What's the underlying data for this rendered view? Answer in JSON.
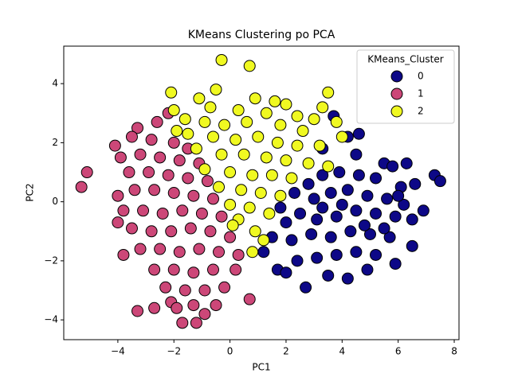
{
  "chart_data": {
    "type": "scatter",
    "title": "KMeans Clustering po PCA",
    "x_label": "PC1",
    "y_label": "PC2",
    "legend_title": "KMeans_Cluster",
    "legend_position": "upper right",
    "grid": false,
    "xlim": [
      -5.93,
      8.17
    ],
    "ylim": [
      -4.67,
      5.27
    ],
    "xticks": [
      {
        "value": -4,
        "label": "−4"
      },
      {
        "value": -2,
        "label": "−2"
      },
      0,
      2,
      4,
      6,
      8
    ],
    "yticks": [
      {
        "value": -4,
        "label": "−4"
      },
      {
        "value": -2,
        "label": "−2"
      },
      0,
      2,
      4
    ],
    "series": [
      {
        "name": "0",
        "color": "#0d0887",
        "x": [
          3.7,
          4.6,
          4.2,
          3.3,
          4.5,
          5.5,
          6.3,
          5.8,
          7.3,
          7.5,
          6.6,
          6.1,
          5.2,
          4.6,
          3.9,
          3.3,
          2.8,
          2.3,
          3.0,
          3.6,
          4.2,
          4.9,
          5.6,
          6.2,
          6.9,
          6.5,
          5.9,
          5.2,
          4.5,
          3.8,
          3.1,
          2.5,
          2.0,
          1.5,
          2.2,
          2.9,
          3.6,
          4.3,
          5.0,
          5.7,
          6.5,
          5.9,
          5.2,
          4.5,
          3.8,
          3.1,
          2.4,
          1.7,
          1.2,
          2.7,
          3.5,
          4.2,
          4.9,
          2.0,
          1.8,
          3.3,
          4.0,
          4.8,
          5.5,
          6.0
        ],
        "values": [
          2.9,
          2.3,
          2.2,
          1.8,
          1.6,
          1.3,
          1.3,
          1.2,
          0.9,
          0.7,
          0.6,
          0.5,
          0.8,
          0.9,
          1.0,
          0.9,
          0.6,
          0.3,
          0.1,
          0.3,
          0.4,
          0.2,
          0.1,
          -0.1,
          -0.3,
          -0.6,
          -0.5,
          -0.4,
          -0.3,
          -0.5,
          -0.6,
          -0.4,
          -0.7,
          -1.2,
          -1.3,
          -1.1,
          -1.2,
          -1.0,
          -1.1,
          -1.2,
          -1.5,
          -2.1,
          -1.8,
          -1.7,
          -1.8,
          -1.9,
          -2.0,
          -2.3,
          -1.7,
          -2.9,
          -2.5,
          -2.6,
          -2.3,
          -2.4,
          -0.2,
          -0.2,
          -0.1,
          -0.8,
          -0.9,
          0.2
        ]
      },
      {
        "name": "1",
        "color": "#cc4778",
        "x": [
          -5.3,
          -5.1,
          -4.0,
          -3.8,
          -3.3,
          -2.7,
          -2.1,
          -1.7,
          -1.2,
          -0.9,
          0.7,
          -2.2,
          -3.3,
          -4.1,
          -3.5,
          -2.8,
          -2.0,
          -1.5,
          -3.9,
          -3.2,
          -2.5,
          -1.8,
          -1.1,
          -3.6,
          -2.9,
          -2.2,
          -1.5,
          -0.8,
          -3.4,
          -2.7,
          -2.0,
          -1.3,
          -0.6,
          -3.8,
          -3.1,
          -2.4,
          -1.7,
          -1.0,
          -0.3,
          -3.5,
          -2.8,
          -2.1,
          -1.4,
          -0.7,
          0.0,
          -3.2,
          -2.5,
          -1.8,
          -1.1,
          -0.4,
          0.3,
          -2.7,
          -2.0,
          -1.3,
          -0.6,
          0.2,
          -2.3,
          -1.6,
          -0.9,
          -0.2,
          -1.9,
          -1.3,
          -0.5,
          -4.0,
          -2.6
        ],
        "values": [
          0.5,
          1.0,
          0.2,
          -1.8,
          -3.7,
          -3.6,
          -3.4,
          -4.1,
          -4.1,
          -3.8,
          -3.3,
          3.0,
          2.5,
          1.9,
          2.2,
          2.1,
          2.0,
          1.8,
          1.5,
          1.6,
          1.5,
          1.4,
          1.3,
          1.0,
          1.0,
          0.9,
          0.8,
          0.7,
          0.4,
          0.4,
          0.3,
          0.2,
          0.1,
          -0.3,
          -0.3,
          -0.4,
          -0.3,
          -0.4,
          -0.5,
          -0.9,
          -1.0,
          -1.0,
          -0.9,
          -1.0,
          -1.2,
          -1.6,
          -1.6,
          -1.7,
          -1.6,
          -1.7,
          -1.8,
          -2.3,
          -2.3,
          -2.4,
          -2.3,
          -2.3,
          -2.9,
          -3.0,
          -3.0,
          -2.9,
          -3.6,
          -3.5,
          -3.5,
          -0.7,
          2.7
        ]
      },
      {
        "name": "2",
        "color": "#f0f921",
        "x": [
          -0.3,
          0.7,
          -0.5,
          -2.0,
          -2.1,
          3.5,
          3.3,
          -1.1,
          0.9,
          2.0,
          1.6,
          -0.7,
          0.3,
          1.3,
          2.4,
          3.0,
          3.8,
          -1.6,
          -0.9,
          -0.2,
          0.6,
          1.8,
          2.6,
          -1.5,
          -0.6,
          0.2,
          1.0,
          1.7,
          2.4,
          3.2,
          -1.2,
          -0.3,
          0.5,
          1.3,
          2.0,
          2.8,
          3.5,
          -0.9,
          0.0,
          0.8,
          1.5,
          2.2,
          -0.4,
          0.4,
          1.1,
          1.8,
          0.0,
          0.7,
          1.4,
          0.3,
          0.1,
          0.9,
          0.8,
          1.2,
          -1.9,
          4.0
        ],
        "values": [
          4.8,
          4.6,
          3.8,
          3.1,
          3.7,
          3.7,
          3.2,
          3.5,
          3.5,
          3.3,
          3.4,
          3.2,
          3.1,
          3.0,
          2.9,
          2.8,
          2.7,
          2.8,
          2.7,
          2.6,
          2.7,
          2.6,
          2.4,
          2.3,
          2.2,
          2.1,
          2.2,
          2.0,
          1.9,
          1.9,
          1.8,
          1.6,
          1.6,
          1.5,
          1.4,
          1.3,
          1.2,
          1.1,
          1.0,
          0.9,
          0.9,
          0.8,
          0.5,
          0.4,
          0.3,
          0.2,
          -0.1,
          -0.2,
          -0.4,
          -0.6,
          -0.8,
          -1.0,
          -1.7,
          -1.3,
          2.4,
          2.2
        ]
      }
    ]
  }
}
